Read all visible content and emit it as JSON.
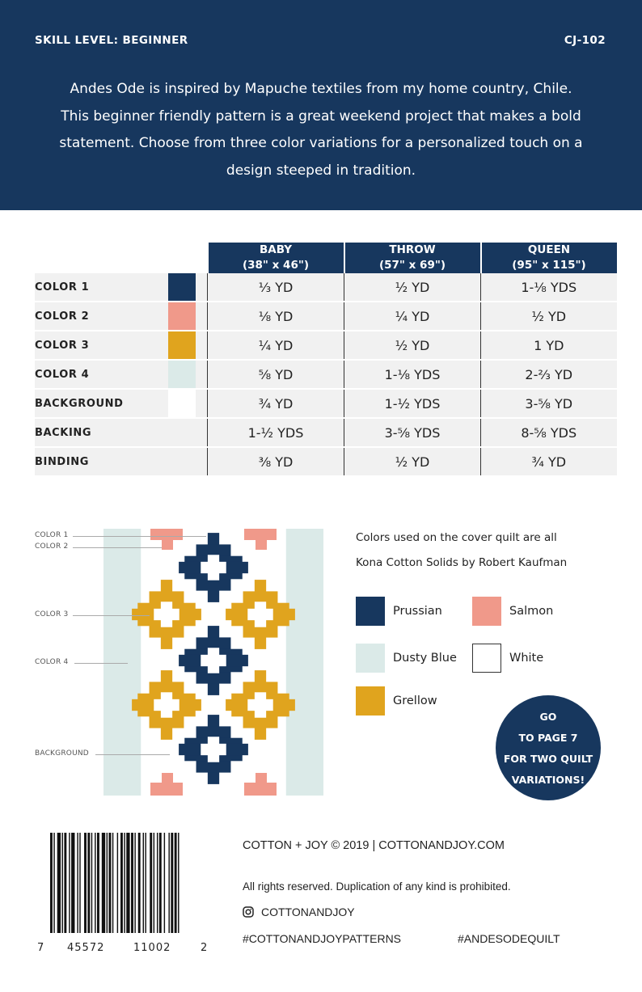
{
  "header": {
    "skill_level": "SKILL LEVEL: BEGINNER",
    "code": "CJ-102",
    "intro": "Andes Ode is inspired by Mapuche textiles from my home country, Chile. This beginner friendly pattern is a great weekend project that makes a bold statement. Choose from three color variations for a personalized touch on a design steeped in tradition."
  },
  "table": {
    "columns": [
      {
        "name": "BABY",
        "size": "(38\" x 46\")"
      },
      {
        "name": "THROW",
        "size": "(57\" x 69\")"
      },
      {
        "name": "QUEEN",
        "size": "(95\" x 115\")"
      }
    ],
    "rows": [
      {
        "label": "COLOR 1",
        "swatch": "#17375e",
        "values": [
          "⅓ YD",
          "½ YD",
          "1-⅛ YDS"
        ]
      },
      {
        "label": "COLOR 2",
        "swatch": "#f0998a",
        "values": [
          "⅛ YD",
          "¼ YD",
          "½ YD"
        ]
      },
      {
        "label": "COLOR 3",
        "swatch": "#e0a41e",
        "values": [
          "¼ YD",
          "½ YD",
          "1 YD"
        ]
      },
      {
        "label": "COLOR 4",
        "swatch": "#dbeae8",
        "values": [
          "⅝ YD",
          "1-⅛ YDS",
          "2-⅔ YD"
        ]
      },
      {
        "label": "BACKGROUND",
        "swatch": "#ffffff",
        "values": [
          "¾ YD",
          "1-½ YDS",
          "3-⅝ YD"
        ]
      },
      {
        "label": "BACKING",
        "swatch": null,
        "values": [
          "1-½ YDS",
          "3-⅝ YDS",
          "8-⅝ YDS"
        ]
      },
      {
        "label": "BINDING",
        "swatch": null,
        "values": [
          "⅜ YD",
          "½ YD",
          "¾ YD"
        ]
      }
    ]
  },
  "diagram": {
    "callouts": [
      "COLOR 1",
      "COLOR 2",
      "COLOR 3",
      "COLOR 4",
      "BACKGROUND"
    ],
    "colors": {
      "c1": "#17375e",
      "c2": "#f0998a",
      "c3": "#e0a41e",
      "c4": "#dbeae8",
      "bg": "#ffffff"
    }
  },
  "legend": {
    "note_line1": "Colors used on the cover quilt are all",
    "note_line2": "Kona Cotton Solids by Robert Kaufman",
    "items": [
      {
        "name": "Prussian",
        "color": "#17375e"
      },
      {
        "name": "Salmon",
        "color": "#f0998a"
      },
      {
        "name": "Dusty Blue",
        "color": "#dbeae8"
      },
      {
        "name": "White",
        "color": "#ffffff"
      },
      {
        "name": "Grellow",
        "color": "#e0a41e"
      }
    ]
  },
  "badge": {
    "lines": [
      "GO",
      "TO PAGE 7",
      "FOR TWO QUILT",
      "VARIATIONS!"
    ]
  },
  "barcode": {
    "digits": [
      "7",
      "45572",
      "11002",
      "2"
    ]
  },
  "footer": {
    "brand_line": "COTTON + JOY  ©  2019  |  COTTONANDJOY.COM",
    "rights": "All rights reserved. Duplication of any kind is prohibited.",
    "instagram_handle": "COTTONANDJOY",
    "hashtag1": "#COTTONANDJOYPATTERNS",
    "hashtag2": "#ANDESODEQUILT"
  }
}
